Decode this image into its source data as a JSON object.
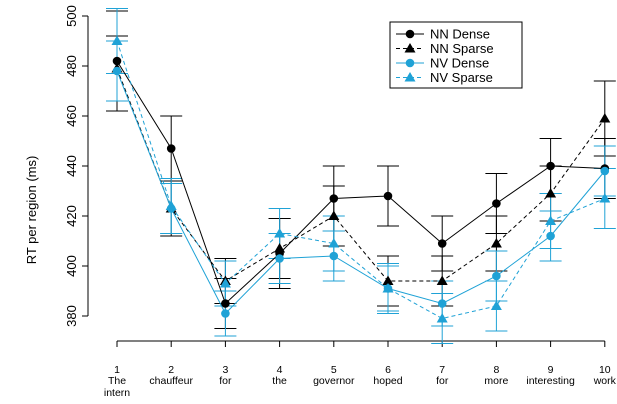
{
  "chart_data": {
    "type": "line",
    "title": "",
    "xlabel": "",
    "ylabel": "RT per region (ms)",
    "ylim": [
      371,
      504
    ],
    "yticks": [
      380,
      400,
      420,
      440,
      460,
      480,
      500
    ],
    "categories": [
      {
        "num": "1",
        "word": "The intern"
      },
      {
        "num": "2",
        "word": "chauffeur"
      },
      {
        "num": "3",
        "word": "for"
      },
      {
        "num": "4",
        "word": "the"
      },
      {
        "num": "5",
        "word": "governor"
      },
      {
        "num": "6",
        "word": "hoped"
      },
      {
        "num": "7",
        "word": "for"
      },
      {
        "num": "8",
        "word": "more"
      },
      {
        "num": "9",
        "word": "interesting"
      },
      {
        "num": "10",
        "word": "work"
      }
    ],
    "legend_position": "top-right",
    "series": [
      {
        "name": "NN Dense",
        "color": "#000000",
        "marker": "circle",
        "dash": "solid",
        "values": [
          482,
          447,
          385,
          405,
          427,
          428,
          409,
          425,
          440,
          439
        ],
        "err": [
          20,
          13,
          10,
          14,
          13,
          12,
          11,
          12,
          11,
          12
        ]
      },
      {
        "name": "NN Sparse",
        "color": "#000000",
        "marker": "triangle",
        "dash": "dashed",
        "values": [
          479,
          423,
          394,
          407,
          420,
          394,
          394,
          409,
          429,
          459
        ],
        "err": [
          13,
          11,
          9,
          12,
          12,
          10,
          10,
          11,
          11,
          15
        ]
      },
      {
        "name": "NV Dense",
        "color": "#1fa2d6",
        "marker": "circle",
        "dash": "solid",
        "values": [
          478,
          423,
          381,
          403,
          404,
          391,
          385,
          396,
          412,
          438
        ],
        "err": [
          12,
          10,
          9,
          10,
          10,
          9,
          9,
          10,
          10,
          10
        ]
      },
      {
        "name": "NV Sparse",
        "color": "#1fa2d6",
        "marker": "triangle",
        "dash": "dashed",
        "values": [
          490,
          424,
          393,
          413,
          409,
          391,
          379,
          384,
          418,
          427
        ],
        "err": [
          13,
          11,
          9,
          10,
          11,
          10,
          10,
          10,
          11,
          12
        ]
      }
    ]
  }
}
